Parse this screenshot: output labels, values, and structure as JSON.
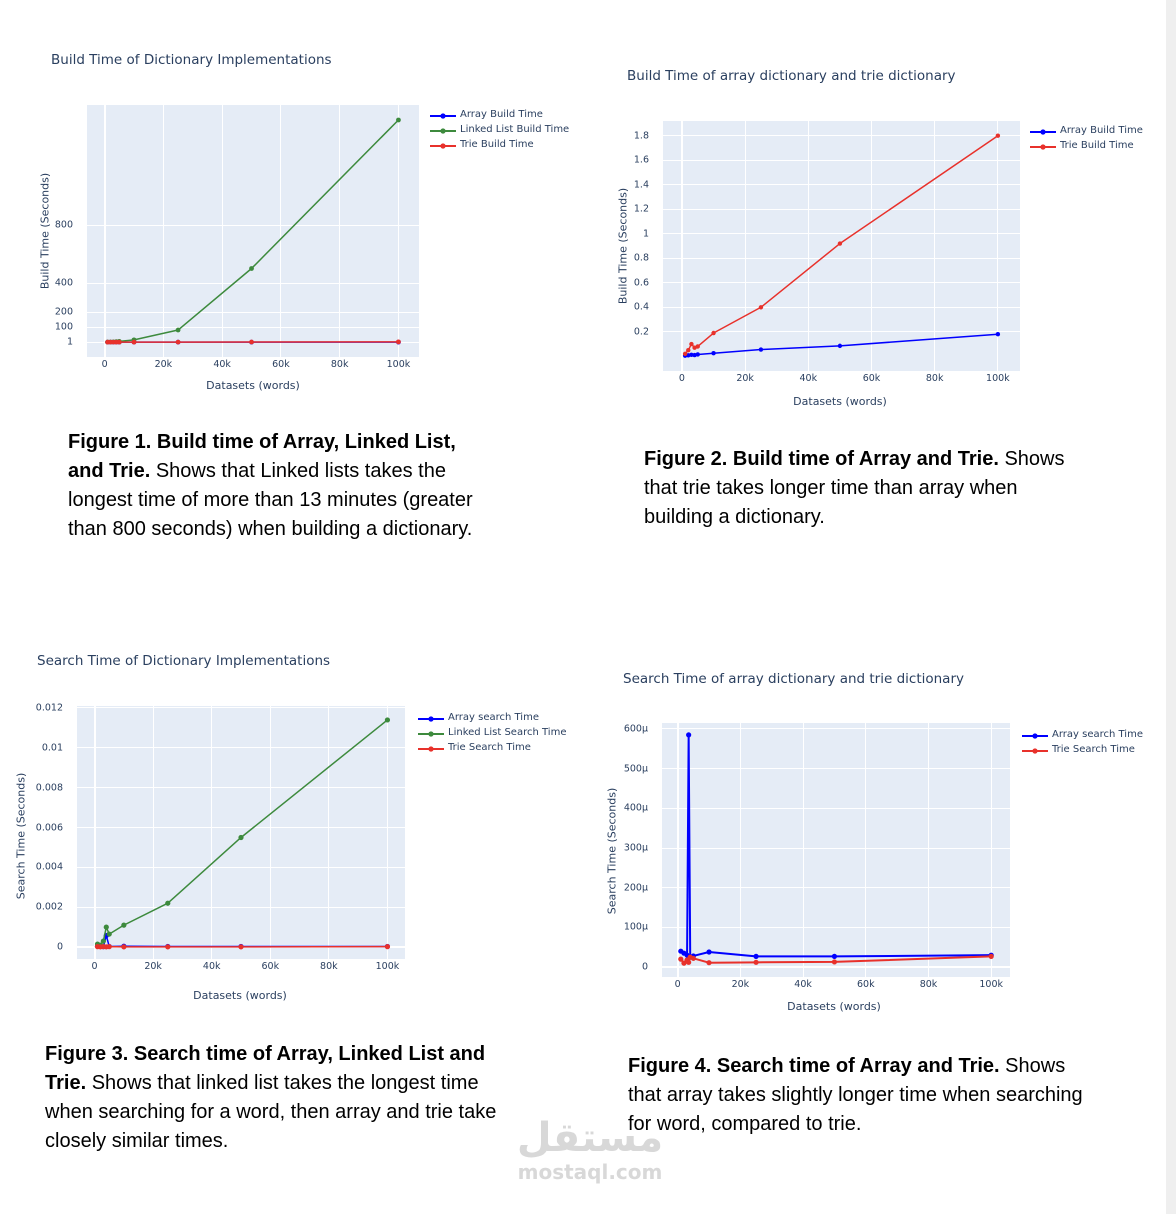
{
  "chart_data": [
    {
      "type": "line",
      "title": "Build Time of Dictionary Implementations",
      "xlabel": "Datasets (words)",
      "ylabel": "Build Time (Seconds)",
      "x_ticks": [
        {
          "value": 0,
          "label": "0"
        },
        {
          "value": 20000,
          "label": "20k"
        },
        {
          "value": 40000,
          "label": "40k"
        },
        {
          "value": 60000,
          "label": "60k"
        },
        {
          "value": 80000,
          "label": "80k"
        },
        {
          "value": 100000,
          "label": "100k"
        }
      ],
      "y_ticks": [
        {
          "value": 1,
          "label": "1"
        },
        {
          "value": 100,
          "label": "100"
        },
        {
          "value": 200,
          "label": "200"
        },
        {
          "value": 400,
          "label": "400"
        },
        {
          "value": 800,
          "label": "800"
        }
      ],
      "xlim": [
        -6000,
        107000
      ],
      "legend_position": "top-right",
      "grid": true,
      "series": [
        {
          "name": "Array Build Time",
          "color": "#0000ff",
          "x": [
            1000,
            2000,
            3000,
            4000,
            5000,
            10000,
            25000,
            50000,
            100000
          ],
          "y": [
            0.01,
            0.01,
            0.01,
            0.01,
            0.01,
            0.02,
            0.06,
            0.09,
            0.18
          ]
        },
        {
          "name": "Linked List Build Time",
          "color": "#3d8a3d",
          "x": [
            1000,
            2000,
            3000,
            4000,
            5000,
            10000,
            25000,
            50000,
            100000
          ],
          "y": [
            0.5,
            1,
            2,
            3,
            5,
            15,
            80,
            500,
            1500
          ]
        },
        {
          "name": "Trie Build Time",
          "color": "#e8312b",
          "x": [
            1000,
            2000,
            3000,
            4000,
            5000,
            10000,
            25000,
            50000,
            100000
          ],
          "y": [
            0.02,
            0.05,
            0.1,
            0.08,
            0.08,
            0.19,
            0.4,
            0.92,
            1.8
          ]
        }
      ]
    },
    {
      "type": "line",
      "title": "Build Time of array dictionary and trie dictionary",
      "xlabel": "Datasets (words)",
      "ylabel": "Build Time (Seconds)",
      "x_ticks": [
        {
          "value": 0,
          "label": "0"
        },
        {
          "value": 20000,
          "label": "20k"
        },
        {
          "value": 40000,
          "label": "40k"
        },
        {
          "value": 60000,
          "label": "60k"
        },
        {
          "value": 80000,
          "label": "80k"
        },
        {
          "value": 100000,
          "label": "100k"
        }
      ],
      "y_ticks": [
        {
          "value": 0.2,
          "label": "0.2"
        },
        {
          "value": 0.4,
          "label": "0.4"
        },
        {
          "value": 0.6,
          "label": "0.6"
        },
        {
          "value": 0.8,
          "label": "0.8"
        },
        {
          "value": 1,
          "label": "1"
        },
        {
          "value": 1.2,
          "label": "1.2"
        },
        {
          "value": 1.4,
          "label": "1.4"
        },
        {
          "value": 1.6,
          "label": "1.6"
        },
        {
          "value": 1.8,
          "label": "1.8"
        }
      ],
      "xlim": [
        -6000,
        107000
      ],
      "ylim": [
        -0.12,
        1.92
      ],
      "legend_position": "top-right",
      "grid": true,
      "series": [
        {
          "name": "Array Build Time",
          "color": "#0000ff",
          "x": [
            1000,
            2000,
            3000,
            4000,
            5000,
            10000,
            25000,
            50000,
            100000
          ],
          "y": [
            0.005,
            0.008,
            0.012,
            0.01,
            0.015,
            0.025,
            0.055,
            0.085,
            0.18
          ]
        },
        {
          "name": "Trie Build Time",
          "color": "#e8312b",
          "x": [
            1000,
            2000,
            3000,
            4000,
            5000,
            10000,
            25000,
            50000,
            100000
          ],
          "y": [
            0.02,
            0.05,
            0.1,
            0.07,
            0.08,
            0.19,
            0.4,
            0.92,
            1.8
          ]
        }
      ]
    },
    {
      "type": "line",
      "title": "Search Time of Dictionary Implementations",
      "xlabel": "Datasets (words)",
      "ylabel": "Search Time (Seconds)",
      "x_ticks": [
        {
          "value": 0,
          "label": "0"
        },
        {
          "value": 20000,
          "label": "20k"
        },
        {
          "value": 40000,
          "label": "40k"
        },
        {
          "value": 60000,
          "label": "60k"
        },
        {
          "value": 80000,
          "label": "80k"
        },
        {
          "value": 100000,
          "label": "100k"
        }
      ],
      "y_ticks": [
        {
          "value": 0,
          "label": "0"
        },
        {
          "value": 0.002,
          "label": "0.002"
        },
        {
          "value": 0.004,
          "label": "0.004"
        },
        {
          "value": 0.006,
          "label": "0.006"
        },
        {
          "value": 0.008,
          "label": "0.008"
        },
        {
          "value": 0.01,
          "label": "0.01"
        },
        {
          "value": 0.012,
          "label": "0.012"
        }
      ],
      "xlim": [
        -6000,
        106000
      ],
      "ylim": [
        -0.0006,
        0.0121
      ],
      "legend_position": "top-right",
      "grid": true,
      "series": [
        {
          "name": "Array search Time",
          "color": "#0000ff",
          "x": [
            1000,
            2000,
            3000,
            4000,
            5000,
            10000,
            25000,
            50000,
            100000
          ],
          "y": [
            4e-05,
            3e-05,
            2e-05,
            0.00058,
            3e-05,
            4e-05,
            3e-05,
            3e-05,
            3e-05
          ]
        },
        {
          "name": "Linked List Search Time",
          "color": "#3d8a3d",
          "x": [
            1000,
            2000,
            3000,
            4000,
            5000,
            10000,
            25000,
            50000,
            100000
          ],
          "y": [
            0.00015,
            0.0001,
            0.0003,
            0.001,
            0.00065,
            0.0011,
            0.0022,
            0.0055,
            0.0114
          ]
        },
        {
          "name": "Trie Search Time",
          "color": "#e8312b",
          "x": [
            1000,
            2000,
            3000,
            4000,
            5000,
            10000,
            25000,
            50000,
            100000
          ],
          "y": [
            2e-05,
            1e-05,
            2e-05,
            1e-05,
            2e-05,
            1e-05,
            1e-05,
            1e-05,
            2e-05
          ]
        }
      ]
    },
    {
      "type": "line",
      "title": "Search Time of array dictionary and trie dictionary",
      "xlabel": "Datasets (words)",
      "ylabel": "Search Time (Seconds)",
      "x_ticks": [
        {
          "value": 0,
          "label": "0"
        },
        {
          "value": 20000,
          "label": "20k"
        },
        {
          "value": 40000,
          "label": "40k"
        },
        {
          "value": 60000,
          "label": "60k"
        },
        {
          "value": 80000,
          "label": "80k"
        },
        {
          "value": 100000,
          "label": "100k"
        }
      ],
      "y_ticks": [
        {
          "value": 0,
          "label": "0"
        },
        {
          "value": 0.0001,
          "label": "100μ"
        },
        {
          "value": 0.0002,
          "label": "200μ"
        },
        {
          "value": 0.0003,
          "label": "300μ"
        },
        {
          "value": 0.0004,
          "label": "400μ"
        },
        {
          "value": 0.0005,
          "label": "500μ"
        },
        {
          "value": 0.0006,
          "label": "600μ"
        }
      ],
      "xlim": [
        -5000,
        106000
      ],
      "ylim": [
        -2.5e-05,
        0.000615
      ],
      "legend_position": "top-right",
      "grid": true,
      "series": [
        {
          "name": "Array search Time",
          "color": "#0000ff",
          "x": [
            1000,
            2000,
            3000,
            3500,
            4000,
            5000,
            10000,
            25000,
            50000,
            100000
          ],
          "y": [
            4e-05,
            3.5e-05,
            3e-05,
            0.000585,
            2.5e-05,
            2.8e-05,
            3.8e-05,
            2.7e-05,
            2.7e-05,
            3e-05
          ]
        },
        {
          "name": "Trie Search Time",
          "color": "#e8312b",
          "x": [
            1000,
            2000,
            3000,
            3500,
            4000,
            5000,
            10000,
            25000,
            50000,
            100000
          ],
          "y": [
            2e-05,
            1e-05,
            1.8e-05,
            1.2e-05,
            2.5e-05,
            2.2e-05,
            1.1e-05,
            1.2e-05,
            1.3e-05,
            2.7e-05
          ]
        }
      ]
    }
  ],
  "captions": [
    {
      "bold": "Figure 1. Build time of Array, Linked List, and Trie.",
      "text": "Shows that Linked lists takes the longest time of more than 13 minutes (greater than 800 seconds) when building a dictionary."
    },
    {
      "bold": "Figure 2. Build time of Array and Trie.",
      "text": "Shows that trie takes longer time than array when building a dictionary."
    },
    {
      "bold": "Figure 3. Search time of Array, Linked List and Trie.",
      "text": "Shows that linked list takes the longest time when searching for a word, then array and trie take closely similar times."
    },
    {
      "bold": "Figure 4. Search time of Array and Trie.",
      "text": "Shows that array takes slightly longer time when searching for word, compared to trie."
    }
  ],
  "watermark": {
    "arabic": "مستقل",
    "latin": "mostaql.com"
  }
}
